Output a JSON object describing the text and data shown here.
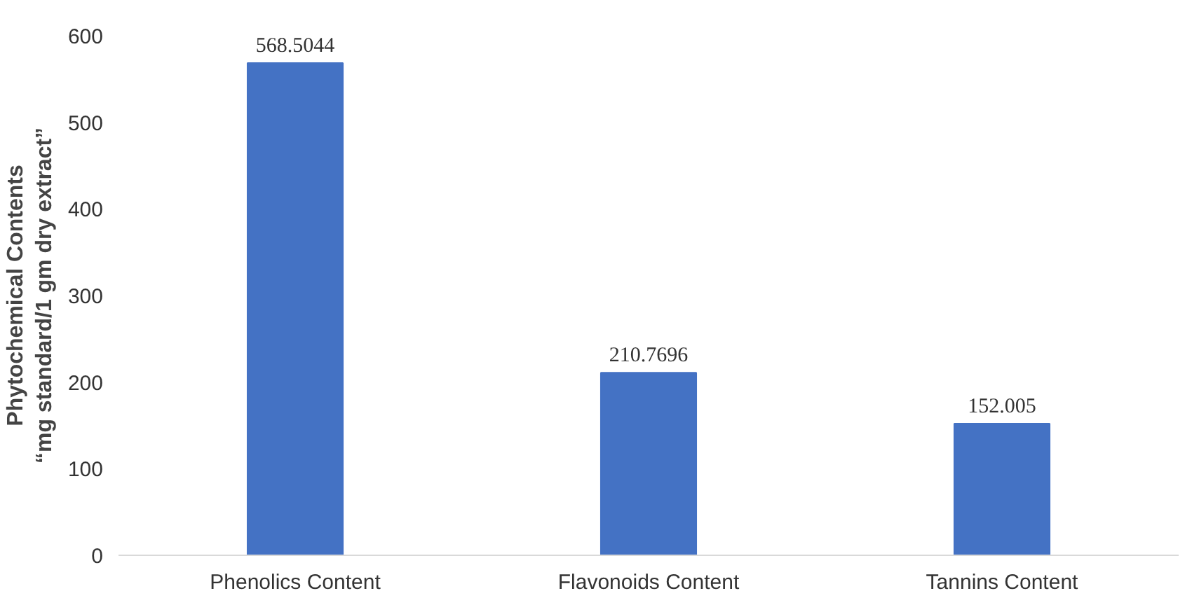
{
  "chart_data": {
    "type": "bar",
    "ylabel": "Phytochemical Contents\n“mg standard/1 gm dry extract”",
    "categories": [
      "Phenolics Content",
      "Flavonoids Content",
      "Tannins Content"
    ],
    "values": [
      568.5044,
      210.7696,
      152.005
    ],
    "value_labels": [
      "568.5044",
      "210.7696",
      "152.005"
    ],
    "color": "#4472c4",
    "ylim": [
      0,
      600
    ],
    "yticks": [
      0,
      100,
      200,
      300,
      400,
      500,
      600
    ],
    "grid": false
  }
}
